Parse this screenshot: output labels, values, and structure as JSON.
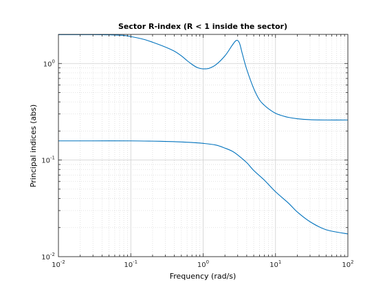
{
  "chart_data": {
    "type": "line",
    "title": "Sector R-index (R < 1 inside the sector)",
    "xlabel": "Frequency (rad/s)",
    "ylabel": "Principal indices (abs)",
    "xscale": "log",
    "yscale": "log",
    "xlim": [
      0.01,
      100
    ],
    "ylim": [
      0.01,
      2
    ],
    "grid": true,
    "x_ticks": [
      {
        "base": "10",
        "exp": "-2",
        "value": 0.01
      },
      {
        "base": "10",
        "exp": "-1",
        "value": 0.1
      },
      {
        "base": "10",
        "exp": "0",
        "value": 1
      },
      {
        "base": "10",
        "exp": "1",
        "value": 10
      },
      {
        "base": "10",
        "exp": "2",
        "value": 100
      }
    ],
    "y_ticks": [
      {
        "base": "10",
        "exp": "-2",
        "value": 0.01
      },
      {
        "base": "10",
        "exp": "-1",
        "value": 0.1
      },
      {
        "base": "10",
        "exp": "0",
        "value": 1
      }
    ],
    "line_color": "#0072bd",
    "series": [
      {
        "x": [
          0.01,
          0.03,
          0.05,
          0.08,
          0.1,
          0.15,
          0.2,
          0.3,
          0.4,
          0.5,
          0.6,
          0.7,
          0.8,
          0.9,
          1.0,
          1.2,
          1.5,
          2.0,
          2.5,
          2.8,
          3.0,
          3.2,
          3.5,
          4.0,
          5.0,
          6.0,
          7.0,
          8.0,
          10.0,
          12.0,
          15.0,
          20.0,
          30.0,
          50.0,
          100.0
        ],
        "y": [
          1.99,
          1.99,
          1.98,
          1.95,
          1.9,
          1.78,
          1.66,
          1.48,
          1.34,
          1.2,
          1.07,
          0.98,
          0.92,
          0.89,
          0.88,
          0.89,
          0.97,
          1.2,
          1.53,
          1.71,
          1.73,
          1.6,
          1.24,
          0.87,
          0.55,
          0.42,
          0.37,
          0.34,
          0.305,
          0.29,
          0.277,
          0.268,
          0.262,
          0.26,
          0.26
        ]
      },
      {
        "x": [
          0.01,
          0.03,
          0.1,
          0.2,
          0.3,
          0.5,
          0.7,
          1.0,
          1.5,
          2.0,
          2.5,
          3.0,
          4.0,
          5.0,
          7.0,
          10.0,
          15.0,
          20.0,
          30.0,
          50.0,
          100.0
        ],
        "y": [
          0.158,
          0.158,
          0.158,
          0.157,
          0.156,
          0.154,
          0.152,
          0.149,
          0.143,
          0.133,
          0.124,
          0.113,
          0.094,
          0.078,
          0.062,
          0.047,
          0.036,
          0.029,
          0.023,
          0.019,
          0.0172
        ]
      }
    ]
  }
}
